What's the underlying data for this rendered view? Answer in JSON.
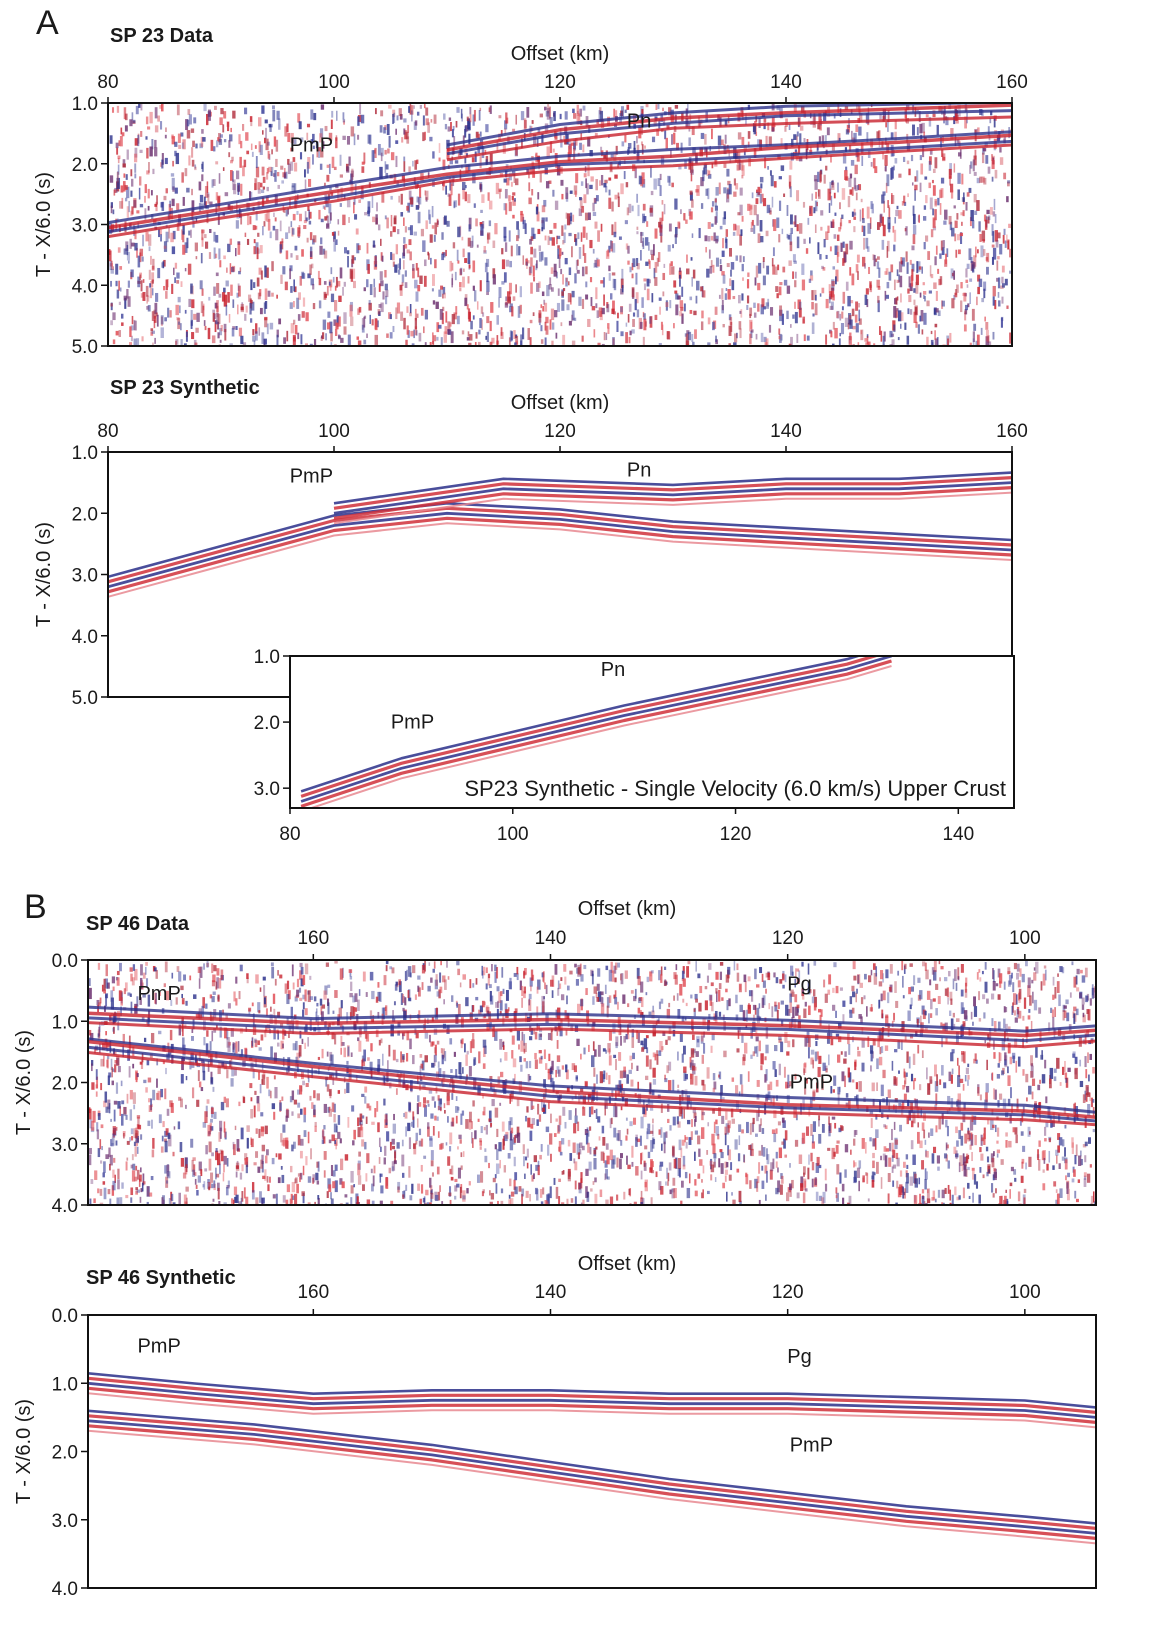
{
  "panels": {
    "a_letter": "A",
    "b_letter": "B"
  },
  "chart_data": [
    {
      "id": "sp23_data",
      "type": "heatmap",
      "title": "SP 23 Data",
      "xlabel": "Offset (km)",
      "ylabel": "T - X/6.0 (s)",
      "xlim": [
        80,
        160
      ],
      "ylim": [
        5.0,
        1.0
      ],
      "xticks": [
        "80",
        "100",
        "120",
        "140",
        "160"
      ],
      "yticks": [
        "1.0",
        "2.0",
        "3.0",
        "4.0",
        "5.0"
      ],
      "annotations": [
        {
          "text": "PmP",
          "x": 98,
          "y": 1.8
        },
        {
          "text": "Pn",
          "x": 127,
          "y": 1.4
        }
      ],
      "events": [
        {
          "name": "PmP",
          "points": [
            [
              80,
              3.1
            ],
            [
              90,
              2.8
            ],
            [
              100,
              2.5
            ],
            [
              110,
              2.2
            ],
            [
              120,
              2.0
            ],
            [
              130,
              1.9
            ],
            [
              140,
              1.8
            ],
            [
              150,
              1.7
            ],
            [
              160,
              1.6
            ]
          ]
        },
        {
          "name": "Pn",
          "points": [
            [
              110,
              1.8
            ],
            [
              120,
              1.5
            ],
            [
              130,
              1.3
            ],
            [
              140,
              1.2
            ],
            [
              160,
              1.1
            ]
          ]
        }
      ]
    },
    {
      "id": "sp23_synthetic",
      "type": "heatmap",
      "title": "SP 23 Synthetic",
      "xlabel": "Offset (km)",
      "ylabel": "T - X/6.0 (s)",
      "xlim": [
        80,
        160
      ],
      "ylim": [
        5.0,
        1.0
      ],
      "xticks": [
        "80",
        "100",
        "120",
        "140",
        "160"
      ],
      "yticks": [
        "1.0",
        "2.0",
        "3.0",
        "4.0",
        "5.0"
      ],
      "annotations": [
        {
          "text": "PmP",
          "x": 98,
          "y": 1.5
        },
        {
          "text": "Pn",
          "x": 127,
          "y": 1.4
        }
      ],
      "events": [
        {
          "name": "PmP",
          "points": [
            [
              80,
              3.2
            ],
            [
              90,
              2.7
            ],
            [
              100,
              2.2
            ],
            [
              110,
              2.0
            ],
            [
              120,
              2.1
            ],
            [
              130,
              2.3
            ],
            [
              140,
              2.4
            ],
            [
              150,
              2.5
            ],
            [
              160,
              2.6
            ]
          ]
        },
        {
          "name": "Pn",
          "points": [
            [
              100,
              2.0
            ],
            [
              115,
              1.6
            ],
            [
              130,
              1.7
            ],
            [
              140,
              1.6
            ],
            [
              150,
              1.6
            ],
            [
              160,
              1.5
            ]
          ]
        }
      ]
    },
    {
      "id": "sp23_single_velocity",
      "type": "heatmap",
      "title": "",
      "caption": "SP23 Synthetic - Single Velocity (6.0 km/s) Upper Crust",
      "xlabel": "",
      "ylabel": "",
      "xlim": [
        80,
        145
      ],
      "ylim": [
        3.3,
        1.0
      ],
      "xticks": [
        "80",
        "100",
        "120",
        "140"
      ],
      "yticks": [
        "1.0",
        "2.0",
        "3.0"
      ],
      "annotations": [
        {
          "text": "PmP",
          "x": 91,
          "y": 2.1
        },
        {
          "text": "Pn",
          "x": 109,
          "y": 1.3
        }
      ],
      "events": [
        {
          "name": "PmP",
          "points": [
            [
              81,
              3.2
            ],
            [
              90,
              2.7
            ],
            [
              100,
              2.3
            ],
            [
              110,
              1.9
            ],
            [
              120,
              1.55
            ],
            [
              130,
              1.2
            ],
            [
              134,
              1.0
            ]
          ]
        }
      ]
    },
    {
      "id": "sp46_data",
      "type": "heatmap",
      "title": "SP 46 Data",
      "xlabel": "Offset (km)",
      "ylabel": "T - X/6.0 (s)",
      "xlim": [
        179,
        94
      ],
      "ylim": [
        4.0,
        0.0
      ],
      "xticks": [
        "160",
        "140",
        "120",
        "100"
      ],
      "yticks": [
        "0.0",
        "1.0",
        "2.0",
        "3.0",
        "4.0"
      ],
      "annotations": [
        {
          "text": "PmP",
          "x": 173,
          "y": 0.65
        },
        {
          "text": "Pg",
          "x": 119,
          "y": 0.5
        },
        {
          "text": "PmP",
          "x": 118,
          "y": 2.1
        }
      ],
      "events": [
        {
          "name": "Pg",
          "points": [
            [
              179,
              0.9
            ],
            [
              160,
              1.1
            ],
            [
              140,
              1.0
            ],
            [
              120,
              1.1
            ],
            [
              100,
              1.3
            ],
            [
              94,
              1.2
            ]
          ]
        },
        {
          "name": "PmP",
          "points": [
            [
              179,
              1.4
            ],
            [
              160,
              1.8
            ],
            [
              140,
              2.2
            ],
            [
              120,
              2.4
            ],
            [
              100,
              2.5
            ],
            [
              94,
              2.6
            ]
          ]
        }
      ]
    },
    {
      "id": "sp46_synthetic",
      "type": "heatmap",
      "title": "SP 46 Synthetic",
      "xlabel": "Offset (km)",
      "ylabel": "T - X/6.0 (s)",
      "xlim": [
        179,
        94
      ],
      "ylim": [
        4.0,
        0.0
      ],
      "xticks": [
        "160",
        "140",
        "120",
        "100"
      ],
      "yticks": [
        "0.0",
        "1.0",
        "2.0",
        "3.0",
        "4.0"
      ],
      "annotations": [
        {
          "text": "PmP",
          "x": 173,
          "y": 0.55
        },
        {
          "text": "Pg",
          "x": 119,
          "y": 0.7
        },
        {
          "text": "PmP",
          "x": 118,
          "y": 2.0
        }
      ],
      "events": [
        {
          "name": "Pg",
          "points": [
            [
              179,
              1.0
            ],
            [
              170,
              1.15
            ],
            [
              160,
              1.3
            ],
            [
              150,
              1.25
            ],
            [
              140,
              1.25
            ],
            [
              130,
              1.3
            ],
            [
              120,
              1.3
            ],
            [
              110,
              1.35
            ],
            [
              100,
              1.4
            ],
            [
              94,
              1.5
            ]
          ]
        },
        {
          "name": "PmP",
          "points": [
            [
              179,
              1.55
            ],
            [
              165,
              1.75
            ],
            [
              150,
              2.05
            ],
            [
              140,
              2.3
            ],
            [
              130,
              2.55
            ],
            [
              120,
              2.75
            ],
            [
              110,
              2.95
            ],
            [
              100,
              3.1
            ],
            [
              94,
              3.2
            ]
          ]
        }
      ]
    }
  ]
}
